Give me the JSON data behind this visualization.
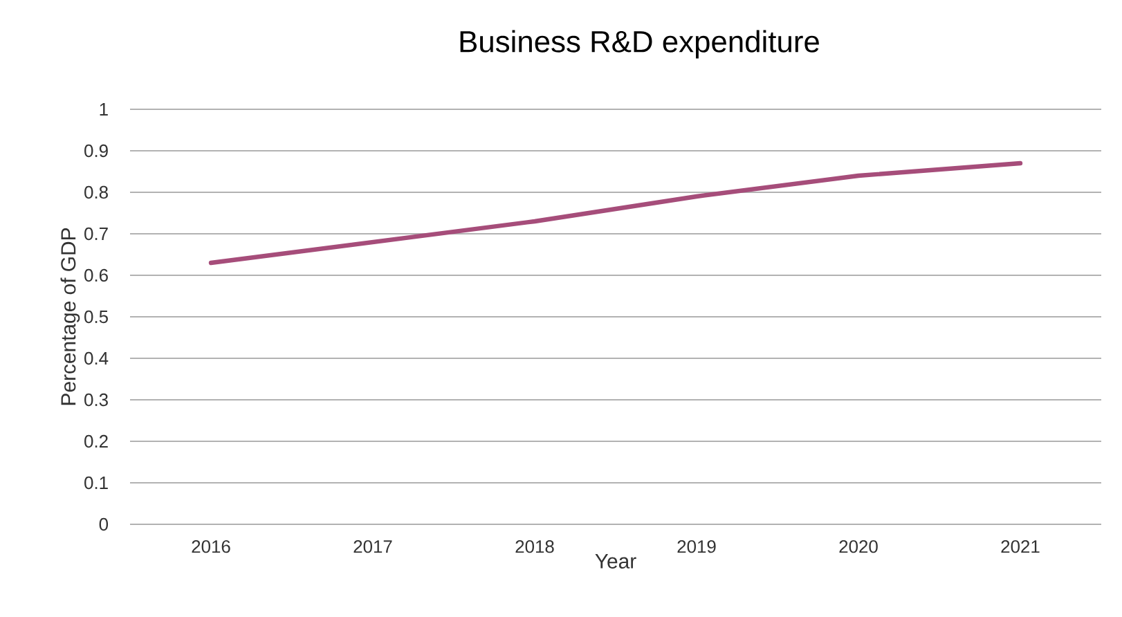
{
  "chart_data": {
    "type": "line",
    "title": "Business R&D expenditure",
    "xlabel": "Year",
    "ylabel": "Percentage of GDP",
    "categories": [
      "2016",
      "2017",
      "2018",
      "2019",
      "2020",
      "2021"
    ],
    "series": [
      {
        "color": "#a64d7a",
        "values": [
          0.63,
          0.68,
          0.73,
          0.79,
          0.84,
          0.87
        ]
      }
    ],
    "ylim": [
      0,
      1
    ],
    "yticks": [
      0,
      0.1,
      0.2,
      0.3,
      0.4,
      0.5,
      0.6,
      0.7,
      0.8,
      0.9,
      1
    ],
    "grid": "y",
    "marker": "none",
    "line_style": "solid"
  }
}
